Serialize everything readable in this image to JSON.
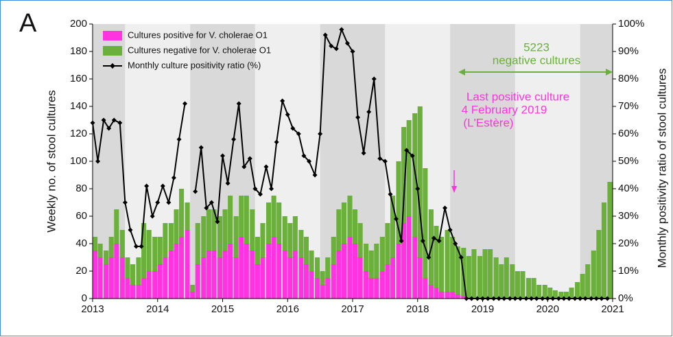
{
  "chart_data": {
    "type": "bar",
    "stacked": true,
    "panel_label": "A",
    "ylabel": "Weekly no. of stool cultures",
    "y2label": "Monthly positivity ratio of stool cultures",
    "xlim": [
      2013,
      2021
    ],
    "xticks": [
      2013,
      2014,
      2015,
      2016,
      2017,
      2018,
      2019,
      2020,
      2021
    ],
    "ylim": [
      0,
      200
    ],
    "yticks": [
      0,
      20,
      40,
      60,
      80,
      100,
      120,
      140,
      160,
      180,
      200
    ],
    "y2lim": [
      0,
      100
    ],
    "y2ticks": [
      {
        "value": 0,
        "label": "0%"
      },
      {
        "value": 10,
        "label": "10%"
      },
      {
        "value": 20,
        "label": "20%"
      },
      {
        "value": 30,
        "label": "30%"
      },
      {
        "value": 40,
        "label": "40%"
      },
      {
        "value": 50,
        "label": "50%"
      },
      {
        "value": 60,
        "label": "60%"
      },
      {
        "value": 70,
        "label": "70%"
      },
      {
        "value": 80,
        "label": "80%"
      },
      {
        "value": 90,
        "label": "90%"
      },
      {
        "value": 100,
        "label": "100%"
      }
    ],
    "x": [
      2013.0,
      2013.08,
      2013.17,
      2013.25,
      2013.33,
      2013.42,
      2013.5,
      2013.58,
      2013.67,
      2013.75,
      2013.83,
      2013.92,
      2014.0,
      2014.08,
      2014.17,
      2014.25,
      2014.33,
      2014.42,
      2014.5,
      2014.58,
      2014.67,
      2014.75,
      2014.83,
      2014.92,
      2015.0,
      2015.08,
      2015.17,
      2015.25,
      2015.33,
      2015.42,
      2015.5,
      2015.58,
      2015.67,
      2015.75,
      2015.83,
      2015.92,
      2016.0,
      2016.08,
      2016.17,
      2016.25,
      2016.33,
      2016.42,
      2016.5,
      2016.58,
      2016.67,
      2016.75,
      2016.83,
      2016.92,
      2017.0,
      2017.08,
      2017.17,
      2017.25,
      2017.33,
      2017.42,
      2017.5,
      2017.58,
      2017.67,
      2017.75,
      2017.83,
      2017.92,
      2018.0,
      2018.08,
      2018.17,
      2018.25,
      2018.33,
      2018.42,
      2018.5,
      2018.58,
      2018.67,
      2018.75,
      2018.83,
      2018.92,
      2019.0,
      2019.08,
      2019.17,
      2019.25,
      2019.33,
      2019.42,
      2019.5,
      2019.58,
      2019.67,
      2019.75,
      2019.83,
      2019.92,
      2020.0,
      2020.08,
      2020.17,
      2020.25,
      2020.33,
      2020.42,
      2020.5,
      2020.58,
      2020.67,
      2020.75,
      2020.83,
      2020.92
    ],
    "series": [
      {
        "name": "Cultures positive for V. cholerae O1",
        "type": "bar",
        "color": "#ff33e0",
        "values": [
          35,
          30,
          25,
          30,
          40,
          30,
          15,
          10,
          10,
          15,
          20,
          20,
          25,
          30,
          35,
          40,
          45,
          50,
          5,
          25,
          30,
          35,
          35,
          30,
          35,
          40,
          30,
          45,
          40,
          35,
          25,
          30,
          40,
          45,
          40,
          35,
          30,
          35,
          30,
          25,
          20,
          15,
          10,
          15,
          25,
          35,
          40,
          45,
          40,
          30,
          20,
          15,
          15,
          20,
          25,
          30,
          40,
          55,
          60,
          45,
          30,
          15,
          10,
          8,
          5,
          5,
          5,
          3,
          2,
          1,
          1,
          1,
          1,
          1,
          0,
          0,
          0,
          0,
          0,
          0,
          0,
          0,
          0,
          0,
          0,
          0,
          0,
          0,
          0,
          0,
          0,
          0,
          0,
          0,
          0,
          0
        ]
      },
      {
        "name": "Cultures negative for V. cholerae O1",
        "type": "bar",
        "color": "#6ab03a",
        "values": [
          10,
          10,
          10,
          15,
          25,
          20,
          15,
          15,
          20,
          40,
          30,
          25,
          20,
          25,
          20,
          25,
          35,
          20,
          5,
          30,
          30,
          30,
          30,
          30,
          30,
          35,
          30,
          30,
          35,
          30,
          20,
          25,
          30,
          30,
          30,
          25,
          25,
          25,
          20,
          20,
          15,
          15,
          10,
          15,
          20,
          30,
          30,
          30,
          25,
          25,
          20,
          20,
          25,
          25,
          30,
          45,
          60,
          70,
          70,
          90,
          110,
          80,
          55,
          45,
          40,
          45,
          40,
          35,
          35,
          30,
          35,
          30,
          35,
          35,
          30,
          25,
          30,
          25,
          20,
          20,
          15,
          15,
          10,
          10,
          8,
          6,
          5,
          5,
          8,
          12,
          18,
          25,
          35,
          50,
          70,
          85
        ]
      },
      {
        "name": "Monthly culture positivity ratio (%)",
        "type": "line",
        "axis": "y2",
        "color": "#000000",
        "values": [
          64,
          50,
          65,
          62,
          65,
          64,
          35,
          25,
          19,
          19,
          41,
          30,
          35,
          41,
          35,
          44,
          58,
          71,
          null,
          39,
          55,
          33,
          35,
          28,
          52,
          42,
          58,
          71,
          48,
          51,
          40,
          38,
          48,
          40,
          57,
          72,
          67,
          62,
          60,
          52,
          50,
          45,
          60,
          96,
          92,
          91,
          98,
          93,
          90,
          66,
          53,
          68,
          80,
          51,
          50,
          38,
          29,
          21,
          54,
          52,
          40,
          21,
          15,
          22,
          21,
          33,
          25,
          20,
          15,
          0,
          0,
          0,
          0,
          0,
          0,
          0,
          0,
          0,
          0,
          0,
          0,
          0,
          0,
          0,
          0,
          0,
          0,
          0,
          0,
          0,
          0,
          0,
          0,
          0,
          0,
          0
        ]
      }
    ],
    "annotations": [
      "5223",
      "negative cultures",
      "Last positive culture",
      "4 February 2019",
      "(L'Estère)"
    ]
  }
}
